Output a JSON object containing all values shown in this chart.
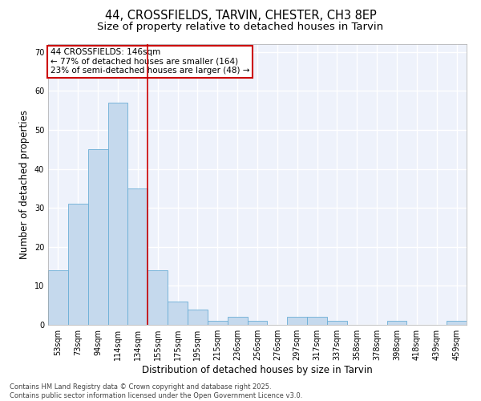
{
  "title": "44, CROSSFIELDS, TARVIN, CHESTER, CH3 8EP",
  "subtitle": "Size of property relative to detached houses in Tarvin",
  "xlabel": "Distribution of detached houses by size in Tarvin",
  "ylabel": "Number of detached properties",
  "categories": [
    "53sqm",
    "73sqm",
    "94sqm",
    "114sqm",
    "134sqm",
    "155sqm",
    "175sqm",
    "195sqm",
    "215sqm",
    "236sqm",
    "256sqm",
    "276sqm",
    "297sqm",
    "317sqm",
    "337sqm",
    "358sqm",
    "378sqm",
    "398sqm",
    "418sqm",
    "439sqm",
    "459sqm"
  ],
  "values": [
    14,
    31,
    45,
    57,
    35,
    14,
    6,
    4,
    1,
    2,
    1,
    0,
    2,
    2,
    1,
    0,
    0,
    1,
    0,
    0,
    1
  ],
  "bar_color": "#c5d9ed",
  "bar_edge_color": "#6aaed6",
  "background_color": "#eef2fb",
  "grid_color": "#ffffff",
  "vline_color": "#cc0000",
  "vline_pos": 4.5,
  "annotation_title": "44 CROSSFIELDS: 146sqm",
  "annotation_line1": "← 77% of detached houses are smaller (164)",
  "annotation_line2": "23% of semi-detached houses are larger (48) →",
  "annotation_box_color": "#cc0000",
  "ylim": [
    0,
    72
  ],
  "yticks": [
    0,
    10,
    20,
    30,
    40,
    50,
    60,
    70
  ],
  "footer_line1": "Contains HM Land Registry data © Crown copyright and database right 2025.",
  "footer_line2": "Contains public sector information licensed under the Open Government Licence v3.0.",
  "title_fontsize": 10.5,
  "subtitle_fontsize": 9.5,
  "tick_fontsize": 7,
  "ylabel_fontsize": 8.5,
  "xlabel_fontsize": 8.5,
  "annotation_fontsize": 7.5,
  "footer_fontsize": 6
}
